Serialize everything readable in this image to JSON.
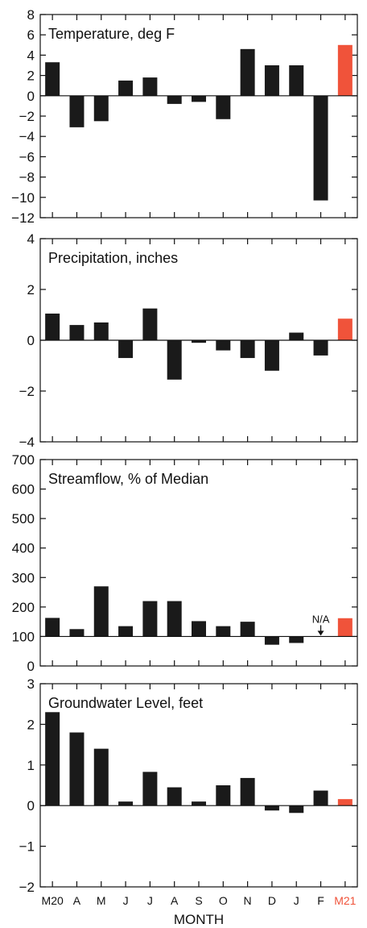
{
  "colors": {
    "bar": "#1a1a1a",
    "highlight": "#f0533a",
    "axis": "#111111"
  },
  "chart_data": [
    {
      "type": "bar",
      "title": "Temperature, deg F",
      "categories": [
        "M20",
        "A",
        "M",
        "J",
        "J",
        "A",
        "S",
        "O",
        "N",
        "D",
        "J",
        "F",
        "M21"
      ],
      "values": [
        3.3,
        -3.1,
        -2.5,
        1.5,
        1.8,
        -0.8,
        -0.6,
        -2.3,
        4.6,
        3.0,
        3.0,
        -10.3,
        5.0
      ],
      "ylim": [
        -12,
        8
      ],
      "yticks": [
        8,
        6,
        4,
        2,
        0,
        -2,
        -4,
        -6,
        -8,
        -10,
        -12
      ],
      "baseline": 0,
      "highlight_index": 12
    },
    {
      "type": "bar",
      "title": "Precipitation, inches",
      "categories": [
        "M20",
        "A",
        "M",
        "J",
        "J",
        "A",
        "S",
        "O",
        "N",
        "D",
        "J",
        "F",
        "M21"
      ],
      "values": [
        1.05,
        0.6,
        0.7,
        -0.7,
        1.25,
        -1.55,
        -0.1,
        -0.4,
        -0.7,
        -1.2,
        0.3,
        -0.6,
        0.85
      ],
      "ylim": [
        -4,
        4
      ],
      "yticks": [
        4,
        2,
        0,
        -2,
        -4
      ],
      "baseline": 0,
      "highlight_index": 12
    },
    {
      "type": "bar",
      "title": "Streamflow, % of Median",
      "categories": [
        "M20",
        "A",
        "M",
        "J",
        "J",
        "A",
        "S",
        "O",
        "N",
        "D",
        "J",
        "F",
        "M21"
      ],
      "values": [
        163,
        125,
        270,
        135,
        220,
        220,
        152,
        135,
        150,
        72,
        78,
        null,
        162
      ],
      "ylim": [
        0,
        700
      ],
      "yticks": [
        700,
        600,
        500,
        400,
        300,
        200,
        100,
        0
      ],
      "baseline": 100,
      "highlight_index": 12,
      "annotation": {
        "text": "N/A",
        "index": 11
      }
    },
    {
      "type": "bar",
      "title": "Groundwater Level, feet",
      "categories": [
        "M20",
        "A",
        "M",
        "J",
        "J",
        "A",
        "S",
        "O",
        "N",
        "D",
        "J",
        "F",
        "M21"
      ],
      "values": [
        2.3,
        1.8,
        1.4,
        0.1,
        0.83,
        0.45,
        0.1,
        0.5,
        0.68,
        -0.12,
        -0.18,
        0.37,
        0.16
      ],
      "ylim": [
        -2,
        3
      ],
      "yticks": [
        3,
        2,
        1,
        0,
        -1,
        -2
      ],
      "baseline": 0,
      "highlight_index": 12
    }
  ],
  "xaxis": {
    "labels": [
      "M20",
      "A",
      "M",
      "J",
      "J",
      "A",
      "S",
      "O",
      "N",
      "D",
      "J",
      "F",
      "M21"
    ],
    "title": "MONTH",
    "highlight_index": 12
  }
}
